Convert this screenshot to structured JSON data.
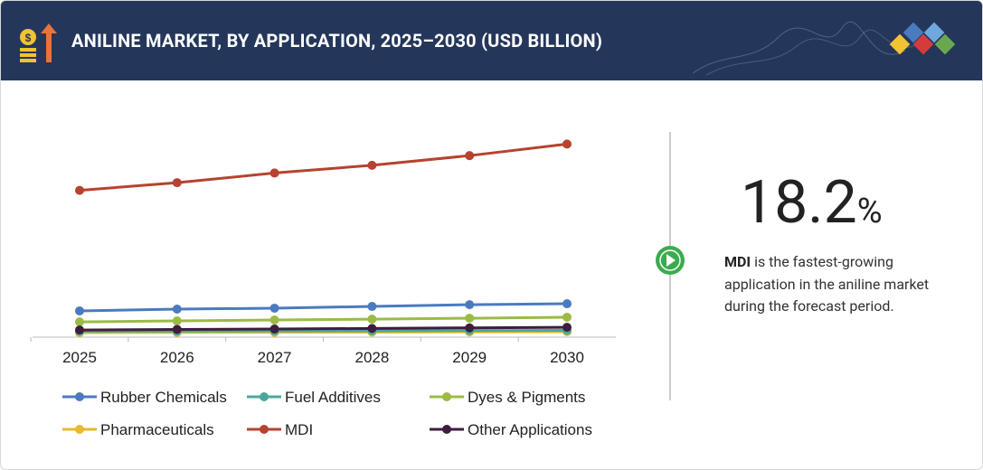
{
  "chart_data": {
    "type": "line",
    "title": "ANILINE MARKET, BY APPLICATION, 2025–2030 (USD BILLION)",
    "categories": [
      "2025",
      "2026",
      "2027",
      "2028",
      "2029",
      "2030"
    ],
    "ylim": [
      0,
      11
    ],
    "series": [
      {
        "name": "Rubber Chemicals",
        "color": "#4a7bbf",
        "values": [
          1.36,
          1.45,
          1.5,
          1.59,
          1.68,
          1.73
        ]
      },
      {
        "name": "Fuel Additives",
        "color": "#4aa89a",
        "values": [
          0.3,
          0.31,
          0.32,
          0.33,
          0.34,
          0.35
        ]
      },
      {
        "name": "Dyes & Pigments",
        "color": "#9bbb45",
        "values": [
          0.79,
          0.84,
          0.89,
          0.93,
          0.98,
          1.03
        ]
      },
      {
        "name": "Pharmaceuticals",
        "color": "#e8b92a",
        "values": [
          0.23,
          0.24,
          0.25,
          0.26,
          0.27,
          0.28
        ]
      },
      {
        "name": "MDI",
        "color": "#b5432f",
        "values": [
          7.6,
          8.0,
          8.5,
          8.9,
          9.4,
          10.0
        ]
      },
      {
        "name": "Other Applications",
        "color": "#3d1e3f",
        "values": [
          0.37,
          0.4,
          0.42,
          0.45,
          0.48,
          0.51
        ]
      }
    ]
  },
  "callout": {
    "value": "18.2",
    "unit": "%",
    "highlight": "MDI",
    "text": "is the fastest-growing application in the aniline market during the forecast period."
  }
}
